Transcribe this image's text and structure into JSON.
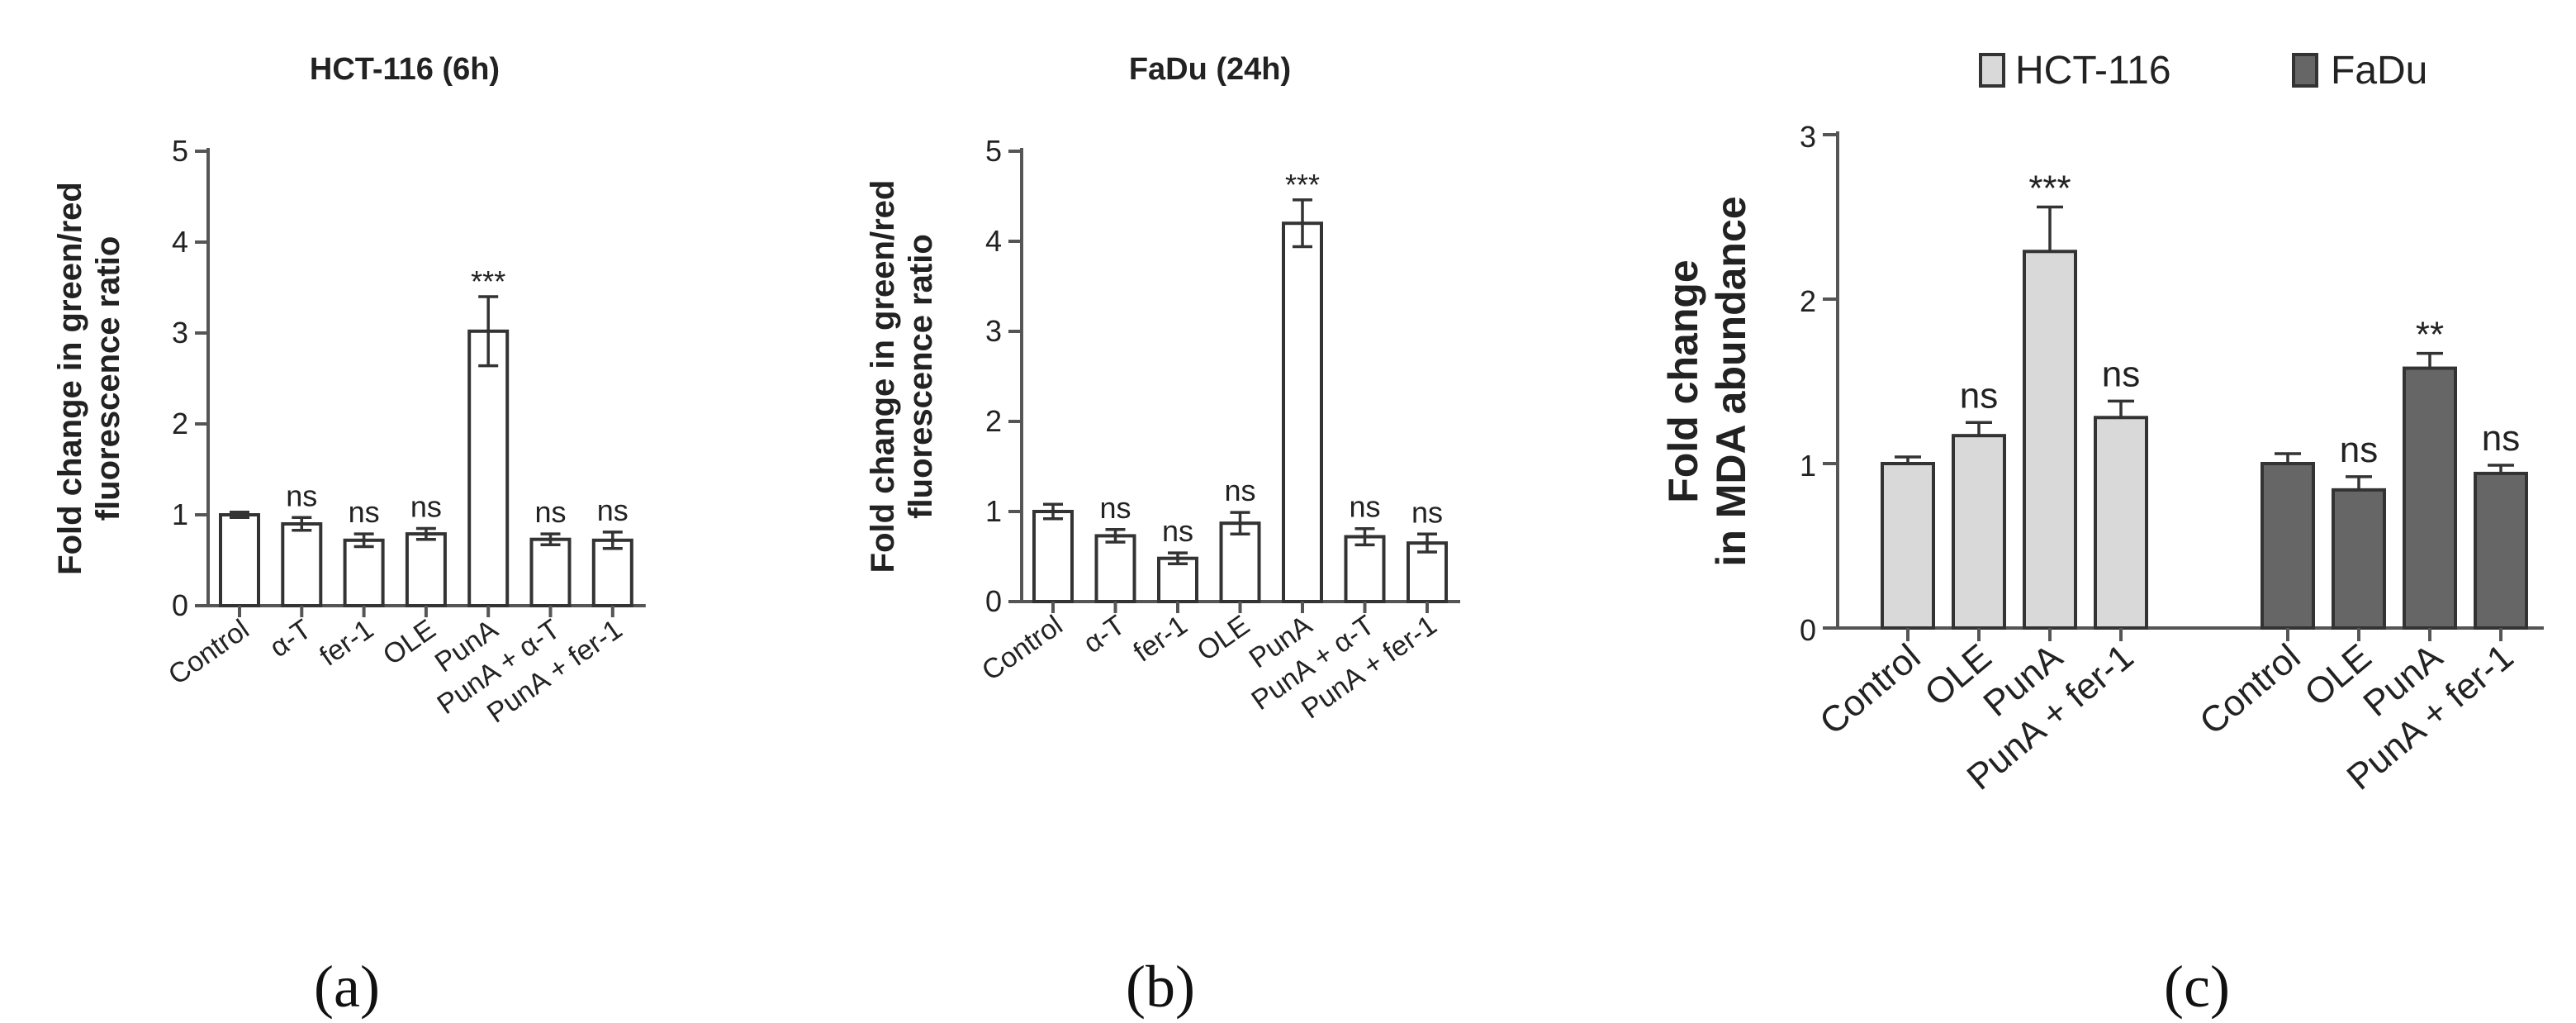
{
  "chart_data": [
    {
      "type": "bar",
      "panel_label": "(a)",
      "title": "HCT-116 (6h)",
      "ylabel_lines": [
        "Fold change in green/red",
        "fluorescence ratio"
      ],
      "ylim": [
        0,
        5
      ],
      "yticks": [
        0,
        1,
        2,
        3,
        4,
        5
      ],
      "categories": [
        "Control",
        "α-T",
        "fer-1",
        "OLE",
        "PunA",
        "PunA + α-T",
        "PunA + fer-1"
      ],
      "values": [
        1.0,
        0.9,
        0.72,
        0.79,
        3.02,
        0.73,
        0.72
      ],
      "errors": [
        0.03,
        0.07,
        0.07,
        0.06,
        0.38,
        0.06,
        0.09
      ],
      "annotations": [
        "",
        "ns",
        "ns",
        "ns",
        "***",
        "ns",
        "ns"
      ],
      "bar_color": "#ffffff"
    },
    {
      "type": "bar",
      "panel_label": "(b)",
      "title": "FaDu (24h)",
      "ylabel_lines": [
        "Fold change in green/red",
        "fluorescence ratio"
      ],
      "ylim": [
        0,
        5
      ],
      "yticks": [
        0,
        1,
        2,
        3,
        4,
        5
      ],
      "categories": [
        "Control",
        "α-T",
        "fer-1",
        "OLE",
        "PunA",
        "PunA + α-T",
        "PunA + fer-1"
      ],
      "values": [
        1.0,
        0.73,
        0.48,
        0.87,
        4.2,
        0.72,
        0.65
      ],
      "errors": [
        0.08,
        0.07,
        0.06,
        0.12,
        0.26,
        0.09,
        0.1
      ],
      "annotations": [
        "",
        "ns",
        "ns",
        "ns",
        "***",
        "ns",
        "ns"
      ],
      "bar_color": "#ffffff"
    },
    {
      "type": "bar",
      "panel_label": "(c)",
      "title": "",
      "ylabel_lines": [
        "Fold change",
        "in MDA abundance"
      ],
      "ylim": [
        0,
        3
      ],
      "yticks": [
        0,
        1,
        2,
        3
      ],
      "legend": [
        {
          "name": "HCT-116",
          "color": "#d9d9d9"
        },
        {
          "name": "FaDu",
          "color": "#666666"
        }
      ],
      "legend_position": "top",
      "groups": [
        {
          "name": "HCT-116",
          "color": "#d9d9d9",
          "categories": [
            "Control",
            "OLE",
            "PunA",
            "PunA + fer-1"
          ],
          "values": [
            1.0,
            1.17,
            2.29,
            1.28
          ],
          "errors": [
            0.04,
            0.08,
            0.27,
            0.1
          ],
          "annotations": [
            "",
            "ns",
            "***",
            "ns"
          ]
        },
        {
          "name": "FaDu",
          "color": "#666666",
          "categories": [
            "Control",
            "OLE",
            "PunA",
            "PunA + fer-1"
          ],
          "values": [
            1.0,
            0.84,
            1.58,
            0.94
          ],
          "errors": [
            0.06,
            0.08,
            0.09,
            0.05
          ],
          "annotations": [
            "",
            "ns",
            "**",
            "ns"
          ]
        }
      ]
    }
  ]
}
